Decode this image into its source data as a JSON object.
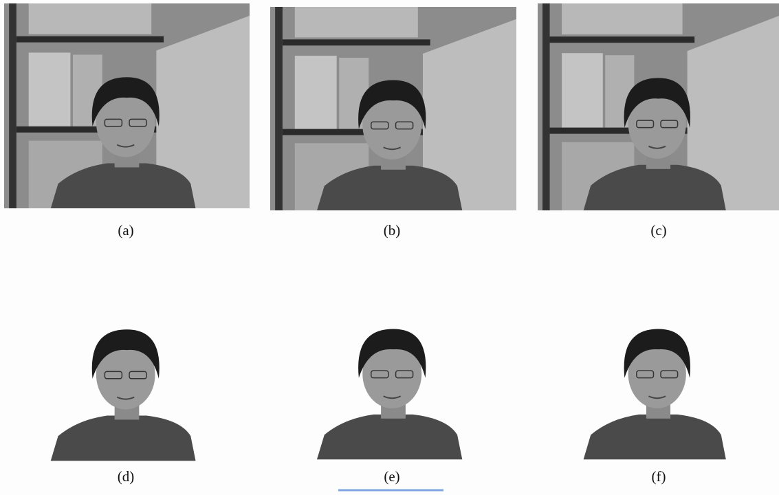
{
  "panels": [
    {
      "label": "(a)"
    },
    {
      "label": "(b)"
    },
    {
      "label": "(c)"
    },
    {
      "label": "(d)"
    },
    {
      "label": "(e)"
    },
    {
      "label": "(f)"
    }
  ]
}
